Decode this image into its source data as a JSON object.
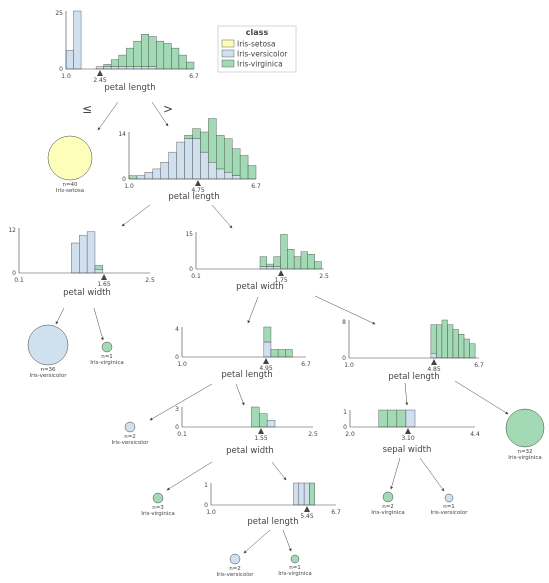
{
  "legend": {
    "title": "class",
    "classes": [
      {
        "name": "Iris-setosa",
        "color": "#fefebb"
      },
      {
        "name": "Iris-versicolor",
        "color": "#d0e0ef"
      },
      {
        "name": "Iris-virginica",
        "color": "#a1dab4"
      }
    ]
  },
  "split_labels": {
    "left": "≤",
    "right": ">"
  },
  "splits": [
    {
      "id": "s0",
      "feature": "petal length",
      "threshold": "2.45",
      "range": [
        "1.0",
        "6.7"
      ],
      "ymax": "25",
      "ymid": "0",
      "bins": [
        [
          0,
          8,
          0
        ],
        [
          0,
          25,
          0
        ],
        [
          0,
          0,
          0
        ],
        [
          0,
          0,
          0
        ],
        [
          0,
          1,
          0
        ],
        [
          0,
          1,
          1
        ],
        [
          0,
          1,
          3
        ],
        [
          0,
          1,
          5
        ],
        [
          0,
          1,
          8
        ],
        [
          0,
          1,
          11
        ],
        [
          0,
          1,
          14
        ],
        [
          0,
          1,
          13
        ],
        [
          0,
          0,
          12
        ],
        [
          0,
          0,
          11
        ],
        [
          0,
          0,
          9
        ],
        [
          0,
          0,
          6
        ],
        [
          0,
          0,
          3
        ]
      ]
    },
    {
      "id": "s1",
      "feature": "petal length",
      "threshold": "4.75",
      "range": [
        "1.0",
        "6.7"
      ],
      "ymax": "14",
      "ymid": "0",
      "bins": [
        [
          0,
          0,
          1
        ],
        [
          0,
          1,
          0
        ],
        [
          0,
          2,
          0
        ],
        [
          0,
          3,
          0
        ],
        [
          0,
          5,
          0
        ],
        [
          0,
          8,
          0
        ],
        [
          0,
          11,
          0
        ],
        [
          0,
          12,
          1
        ],
        [
          0,
          12,
          3
        ],
        [
          0,
          8,
          6
        ],
        [
          0,
          5,
          13
        ],
        [
          0,
          3,
          10
        ],
        [
          0,
          2,
          10
        ],
        [
          0,
          1,
          8
        ],
        [
          0,
          0,
          7
        ],
        [
          0,
          0,
          4
        ]
      ]
    },
    {
      "id": "s2",
      "feature": "petal width",
      "threshold": "1.65",
      "range": [
        "0.1",
        "2.5"
      ],
      "ymax": "12",
      "ymid": "0",
      "bins": [
        [
          0,
          8,
          0
        ],
        [
          0,
          10,
          0
        ],
        [
          0,
          11,
          0
        ],
        [
          0,
          1,
          1
        ]
      ]
    },
    {
      "id": "s3",
      "feature": "petal width",
      "threshold": "1.75",
      "range": [
        "0.1",
        "2.5"
      ],
      "ymax": "15",
      "ymid": "0",
      "bins": [
        [
          0,
          1,
          4
        ],
        [
          0,
          1,
          1
        ],
        [
          0,
          1,
          4
        ],
        [
          0,
          0,
          14
        ],
        [
          0,
          0,
          8
        ],
        [
          0,
          0,
          5
        ],
        [
          0,
          0,
          7
        ],
        [
          0,
          0,
          6
        ],
        [
          0,
          0,
          3
        ]
      ]
    },
    {
      "id": "s4",
      "feature": "petal length",
      "threshold": "4.95",
      "range": [
        "1.0",
        "6.7"
      ],
      "ymax": "4",
      "ymid": "0",
      "bins": [
        [
          0,
          2,
          2
        ],
        [
          0,
          0,
          1
        ],
        [
          0,
          0,
          1
        ],
        [
          0,
          0,
          1
        ]
      ]
    },
    {
      "id": "s5",
      "feature": "petal length",
      "threshold": "4.85",
      "range": [
        "1.0",
        "6.7"
      ],
      "ymax": "8",
      "ymid": "0",
      "bins": [
        [
          0,
          1,
          6
        ],
        [
          0,
          0,
          7
        ],
        [
          0,
          0,
          8
        ],
        [
          0,
          0,
          7
        ],
        [
          0,
          0,
          6
        ],
        [
          0,
          0,
          5
        ],
        [
          0,
          0,
          4
        ],
        [
          0,
          0,
          3
        ]
      ]
    },
    {
      "id": "s6",
      "feature": "petal width",
      "threshold": "1.55",
      "range": [
        "0.1",
        "2.5"
      ],
      "ymax": "3",
      "ymid": "0",
      "bins": [
        [
          0,
          0,
          3
        ],
        [
          0,
          0,
          2
        ],
        [
          0,
          1,
          0
        ]
      ]
    },
    {
      "id": "s7",
      "feature": "sepal width",
      "threshold": "3.10",
      "range": [
        "2.0",
        "4.4"
      ],
      "ymax": "1",
      "ymid": "0",
      "bins": [
        [
          0,
          0,
          1
        ],
        [
          0,
          0,
          1
        ],
        [
          0,
          0,
          1
        ],
        [
          0,
          1,
          0
        ]
      ]
    },
    {
      "id": "s8",
      "feature": "petal length",
      "threshold": "5.45",
      "range": [
        "1.0",
        "6.7"
      ],
      "ymax": "1",
      "ymid": "0",
      "bins": [
        [
          0,
          1,
          0
        ],
        [
          0,
          1,
          0
        ],
        [
          0,
          1,
          0
        ],
        [
          0,
          0,
          1
        ]
      ]
    }
  ],
  "leaves": [
    {
      "id": "l0",
      "n": "n=40",
      "label": "Iris-setosa",
      "color": "#fefebb"
    },
    {
      "id": "l1",
      "n": "n=36",
      "label": "Iris-versicolor",
      "color": "#d0e0ef"
    },
    {
      "id": "l2",
      "n": "n=1",
      "label": "Iris-virginica",
      "color": "#a1dab4"
    },
    {
      "id": "l3",
      "n": "n=2",
      "label": "Iris-versicolor",
      "color": "#d0e0ef"
    },
    {
      "id": "l4",
      "n": "n=32",
      "label": "Iris-virginica",
      "color": "#a1dab4"
    },
    {
      "id": "l5",
      "n": "n=2",
      "label": "Iris-virginica",
      "color": "#a1dab4"
    },
    {
      "id": "l6",
      "n": "n=1",
      "label": "Iris-versicolor",
      "color": "#d0e0ef"
    },
    {
      "id": "l7",
      "n": "n=3",
      "label": "Iris-virginica",
      "color": "#a1dab4"
    },
    {
      "id": "l8",
      "n": "n=2",
      "label": "Iris-versicolor",
      "color": "#d0e0ef"
    },
    {
      "id": "l9",
      "n": "n=1",
      "label": "Iris-virginica",
      "color": "#a1dab4"
    }
  ]
}
